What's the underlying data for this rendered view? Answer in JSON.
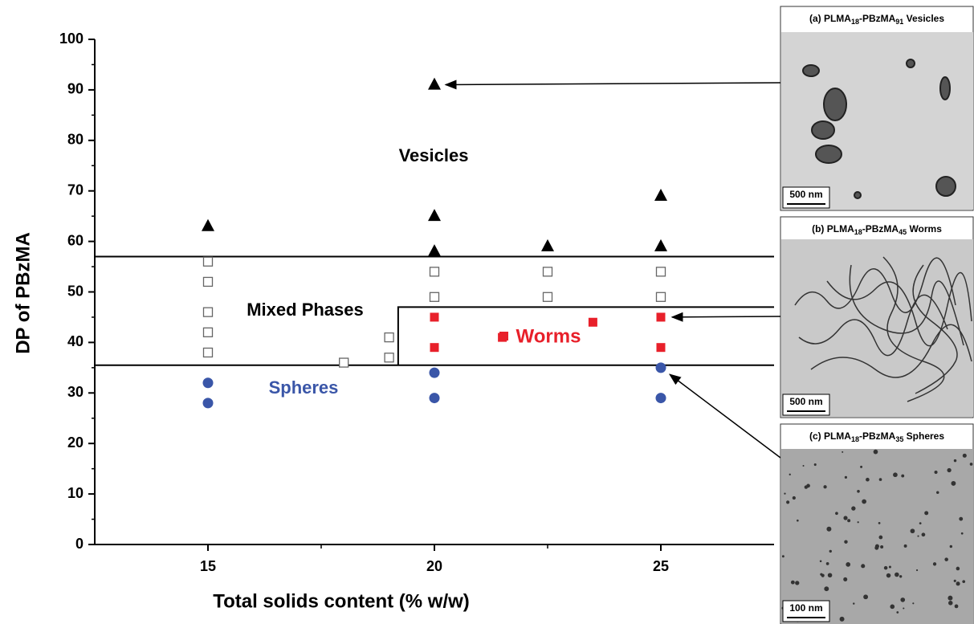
{
  "chart_data": {
    "type": "scatter",
    "xlabel": "Total solids content (% w/w)",
    "ylabel": "DP of PBzMA",
    "xlim": [
      12.5,
      27.5
    ],
    "xticks": [
      15,
      20,
      25
    ],
    "x_minor_ticks": [
      17.5,
      22.5
    ],
    "ylim": [
      0,
      100
    ],
    "yticks": [
      0,
      10,
      20,
      30,
      40,
      50,
      60,
      70,
      80,
      90,
      100
    ],
    "y_minor_ticks": [
      5,
      15,
      25,
      35,
      45,
      55,
      65,
      75,
      85,
      95
    ],
    "series": [
      {
        "marker": "triangle",
        "color": "#000000",
        "x": [
          15,
          20,
          20,
          20,
          22.5,
          25,
          25
        ],
        "values": [
          63,
          91,
          65,
          58,
          59,
          69,
          59
        ]
      },
      {
        "marker": "square-open",
        "color": "#666666",
        "x": [
          15,
          15,
          15,
          15,
          15,
          18,
          19,
          19,
          20,
          20,
          22.5,
          22.5,
          25,
          25
        ],
        "values": [
          56,
          52,
          46,
          42,
          38,
          36,
          41,
          37,
          54,
          49,
          54,
          49,
          54,
          49
        ]
      },
      {
        "marker": "square",
        "color": "#e8202a",
        "x": [
          20,
          20,
          21.5,
          23.5,
          25,
          25
        ],
        "values": [
          45,
          39,
          41,
          44,
          45,
          39
        ]
      },
      {
        "marker": "circle",
        "color": "#3a56a8",
        "x": [
          15,
          15,
          20,
          20,
          25,
          25
        ],
        "values": [
          32,
          28,
          34,
          29,
          35,
          29
        ]
      }
    ],
    "boundaries": [
      {
        "x": [
          12.5,
          27.5
        ],
        "y": [
          57,
          57
        ]
      },
      {
        "x": [
          12.5,
          27.5
        ],
        "y": [
          35.5,
          35.5
        ]
      },
      {
        "x": [
          19.2,
          19.2,
          27.5
        ],
        "y": [
          35.5,
          47,
          47
        ]
      }
    ],
    "annotations": [
      {
        "text": "Vesicles",
        "color": "#000000"
      },
      {
        "text": "Mixed Phases",
        "color": "#000000"
      },
      {
        "text": "Worms",
        "color": "#e8202a"
      },
      {
        "text": "Spheres",
        "color": "#3a56a8"
      }
    ]
  },
  "panels": [
    {
      "prefix": "(a) PLMA",
      "sub1": "18",
      "mid": "-PBzMA",
      "sub2": "91",
      "suffix": " Vesicles",
      "scale": "500 nm"
    },
    {
      "prefix": "(b) PLMA",
      "sub1": "18",
      "mid": "-PBzMA",
      "sub2": "45",
      "suffix": " Worms",
      "scale": "500 nm"
    },
    {
      "prefix": "(c) PLMA",
      "sub1": "18",
      "mid": "-PBzMA",
      "sub2": "35",
      "suffix": " Spheres",
      "scale": "100 nm"
    }
  ]
}
